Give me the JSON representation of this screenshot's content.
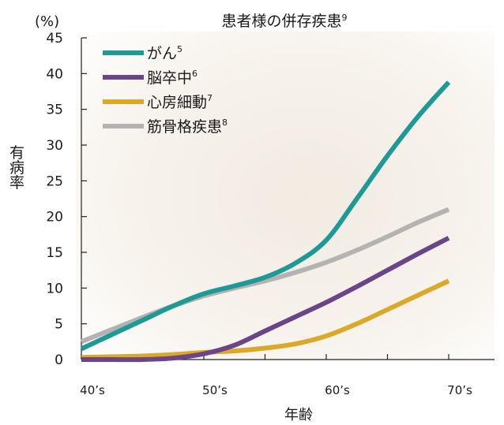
{
  "chart_data": {
    "type": "line",
    "title": "患者様の併存疾患",
    "title_sup": "9",
    "y_unit": "(%)",
    "ylabel": "有病率",
    "xlabel": "年齢",
    "ylim": [
      0,
      45
    ],
    "y_ticks": [
      0,
      5,
      10,
      15,
      20,
      25,
      30,
      35,
      40,
      45
    ],
    "categories": [
      "40’s",
      "50’s",
      "60’s",
      "70’s"
    ],
    "grid": false,
    "legend": "top-left",
    "background": "warm gradient",
    "series": [
      {
        "name": "がん",
        "sup": "5",
        "color": "#1d9a96",
        "x": [
          40,
          42.5,
          45,
          47.5,
          50,
          52.5,
          55,
          57.5,
          60,
          62.5,
          65,
          67.5,
          70
        ],
        "values": [
          1.5,
          3.5,
          5.5,
          7.5,
          9.2,
          10.3,
          11.5,
          13.5,
          16.7,
          22.5,
          28.5,
          34,
          38.8
        ]
      },
      {
        "name": "脳卒中",
        "sup": "6",
        "color": "#6a4588",
        "x": [
          40,
          42.5,
          45,
          47.5,
          50,
          52.5,
          55,
          57.5,
          60,
          62.5,
          65,
          67.5,
          70
        ],
        "values": [
          0,
          0,
          0,
          0.2,
          0.8,
          2,
          4,
          6,
          8,
          10.2,
          12.5,
          14.8,
          17
        ]
      },
      {
        "name": "心房細動",
        "sup": "7",
        "color": "#dba92a",
        "x": [
          40,
          42.5,
          45,
          47.5,
          50,
          52.5,
          55,
          57.5,
          60,
          62.5,
          65,
          67.5,
          70
        ],
        "values": [
          0.3,
          0.4,
          0.5,
          0.7,
          1,
          1.2,
          1.6,
          2.2,
          3.3,
          5,
          7,
          9,
          11
        ]
      },
      {
        "name": "筋骨格疾患",
        "sup": "8",
        "color": "#b4b3b1",
        "x": [
          40,
          42.5,
          45,
          47.5,
          50,
          52.5,
          55,
          57.5,
          60,
          62.5,
          65,
          67.5,
          70
        ],
        "values": [
          2.5,
          4.2,
          5.9,
          7.5,
          8.9,
          10,
          11,
          12.2,
          13.6,
          15.3,
          17.2,
          19.2,
          21
        ]
      }
    ]
  }
}
